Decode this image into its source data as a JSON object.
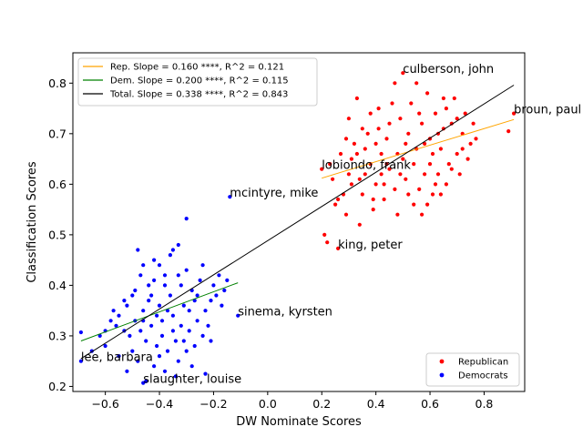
{
  "chart_data": {
    "type": "scatter",
    "xlabel": "DW Nominate Scores",
    "ylabel": "Classification Scores",
    "xlim": [
      -0.72,
      0.95
    ],
    "ylim": [
      0.19,
      0.86
    ],
    "xticks": [
      -0.6,
      -0.4,
      -0.2,
      0.0,
      0.2,
      0.4,
      0.6,
      0.8
    ],
    "xtick_labels": [
      "−0.6",
      "−0.4",
      "−0.2",
      "0.0",
      "0.2",
      "0.4",
      "0.6",
      "0.8"
    ],
    "yticks": [
      0.2,
      0.3,
      0.4,
      0.5,
      0.6,
      0.7,
      0.8
    ],
    "ytick_labels": [
      "0.2",
      "0.3",
      "0.4",
      "0.5",
      "0.6",
      "0.7",
      "0.8"
    ],
    "grid": false,
    "fit_legend": {
      "placement": "top-left",
      "entries": [
        {
          "label": "Rep. Slope = 0.160 ****, R^2 = 0.121",
          "color": "#ffa500"
        },
        {
          "label": "Dem. Slope = 0.200 ****, R^2 = 0.115",
          "color": "#008000"
        },
        {
          "label": "Total. Slope = 0.338 ****, R^2 = 0.843",
          "color": "#000000"
        }
      ]
    },
    "series_legend": {
      "placement": "bottom-right",
      "entries": [
        {
          "label": "Republican",
          "color": "#ff0000"
        },
        {
          "label": "Democrats",
          "color": "#0000ff"
        }
      ]
    },
    "fit_lines": [
      {
        "name": "Rep. Slope = 0.160 ****, R^2 = 0.121",
        "color": "#ffa500",
        "x": [
          0.2,
          0.91
        ],
        "y": [
          0.612,
          0.728
        ]
      },
      {
        "name": "Dem. Slope = 0.200 ****, R^2 = 0.115",
        "color": "#008000",
        "x": [
          -0.69,
          -0.11
        ],
        "y": [
          0.29,
          0.405
        ]
      },
      {
        "name": "Total. Slope = 0.338 ****, R^2 = 0.843",
        "color": "#000000",
        "x": [
          -0.69,
          0.91
        ],
        "y": [
          0.255,
          0.796
        ]
      }
    ],
    "annotations": [
      {
        "text": "culberson, john",
        "x": 0.5,
        "y": 0.82
      },
      {
        "text": "broun, paul",
        "x": 0.91,
        "y": 0.74
      },
      {
        "text": "lobiondo, frank",
        "x": 0.2,
        "y": 0.63
      },
      {
        "text": "mcintyre, mike",
        "x": -0.14,
        "y": 0.575
      },
      {
        "text": "king, peter",
        "x": 0.26,
        "y": 0.473
      },
      {
        "text": "sinema, kyrsten",
        "x": -0.11,
        "y": 0.34
      },
      {
        "text": "lee, barbara",
        "x": -0.69,
        "y": 0.25
      },
      {
        "text": "slaughter, louise",
        "x": -0.46,
        "y": 0.207
      }
    ],
    "series": [
      {
        "name": "Republican",
        "color": "#ff0000",
        "points": [
          [
            0.5,
            0.82
          ],
          [
            0.91,
            0.74
          ],
          [
            0.2,
            0.63
          ],
          [
            0.26,
            0.473
          ],
          [
            0.89,
            0.705
          ],
          [
            0.21,
            0.5
          ],
          [
            0.22,
            0.485
          ],
          [
            0.65,
            0.77
          ],
          [
            0.55,
            0.8
          ],
          [
            0.62,
            0.74
          ],
          [
            0.45,
            0.72
          ],
          [
            0.4,
            0.68
          ],
          [
            0.35,
            0.71
          ],
          [
            0.3,
            0.73
          ],
          [
            0.33,
            0.66
          ],
          [
            0.38,
            0.64
          ],
          [
            0.42,
            0.62
          ],
          [
            0.48,
            0.66
          ],
          [
            0.52,
            0.7
          ],
          [
            0.58,
            0.68
          ],
          [
            0.6,
            0.64
          ],
          [
            0.63,
            0.62
          ],
          [
            0.66,
            0.6
          ],
          [
            0.7,
            0.66
          ],
          [
            0.72,
            0.7
          ],
          [
            0.75,
            0.68
          ],
          [
            0.68,
            0.72
          ],
          [
            0.56,
            0.74
          ],
          [
            0.46,
            0.76
          ],
          [
            0.44,
            0.69
          ],
          [
            0.36,
            0.62
          ],
          [
            0.31,
            0.6
          ],
          [
            0.28,
            0.58
          ],
          [
            0.25,
            0.56
          ],
          [
            0.29,
            0.54
          ],
          [
            0.34,
            0.52
          ],
          [
            0.39,
            0.55
          ],
          [
            0.43,
            0.57
          ],
          [
            0.47,
            0.59
          ],
          [
            0.51,
            0.61
          ],
          [
            0.54,
            0.56
          ],
          [
            0.57,
            0.54
          ],
          [
            0.61,
            0.58
          ],
          [
            0.64,
            0.67
          ],
          [
            0.67,
            0.64
          ],
          [
            0.71,
            0.62
          ],
          [
            0.73,
            0.74
          ],
          [
            0.76,
            0.72
          ],
          [
            0.69,
            0.77
          ],
          [
            0.59,
            0.78
          ],
          [
            0.53,
            0.76
          ],
          [
            0.49,
            0.73
          ],
          [
            0.41,
            0.75
          ],
          [
            0.37,
            0.7
          ],
          [
            0.32,
            0.68
          ],
          [
            0.27,
            0.66
          ],
          [
            0.23,
            0.64
          ],
          [
            0.24,
            0.61
          ],
          [
            0.26,
            0.57
          ],
          [
            0.3,
            0.62
          ],
          [
            0.35,
            0.58
          ],
          [
            0.4,
            0.6
          ],
          [
            0.45,
            0.63
          ],
          [
            0.5,
            0.65
          ],
          [
            0.55,
            0.67
          ],
          [
            0.6,
            0.69
          ],
          [
            0.65,
            0.71
          ],
          [
            0.7,
            0.73
          ],
          [
            0.74,
            0.65
          ],
          [
            0.62,
            0.6
          ],
          [
            0.58,
            0.62
          ],
          [
            0.52,
            0.58
          ],
          [
            0.48,
            0.54
          ],
          [
            0.42,
            0.66
          ],
          [
            0.38,
            0.74
          ],
          [
            0.33,
            0.77
          ],
          [
            0.47,
            0.8
          ],
          [
            0.57,
            0.72
          ],
          [
            0.63,
            0.7
          ],
          [
            0.66,
            0.75
          ],
          [
            0.72,
            0.67
          ],
          [
            0.77,
            0.69
          ],
          [
            0.54,
            0.64
          ],
          [
            0.44,
            0.64
          ],
          [
            0.36,
            0.67
          ],
          [
            0.29,
            0.69
          ],
          [
            0.31,
            0.65
          ],
          [
            0.41,
            0.71
          ],
          [
            0.51,
            0.68
          ],
          [
            0.61,
            0.66
          ],
          [
            0.68,
            0.63
          ],
          [
            0.64,
            0.58
          ],
          [
            0.59,
            0.56
          ],
          [
            0.56,
            0.59
          ],
          [
            0.49,
            0.62
          ],
          [
            0.43,
            0.6
          ],
          [
            0.39,
            0.57
          ],
          [
            0.34,
            0.61
          ]
        ]
      },
      {
        "name": "Democrats",
        "color": "#0000ff",
        "points": [
          [
            -0.14,
            0.575
          ],
          [
            -0.11,
            0.34
          ],
          [
            -0.69,
            0.25
          ],
          [
            -0.46,
            0.207
          ],
          [
            -0.69,
            0.307
          ],
          [
            -0.45,
            0.21
          ],
          [
            -0.3,
            0.532
          ],
          [
            -0.35,
            0.47
          ],
          [
            -0.48,
            0.47
          ],
          [
            -0.4,
            0.44
          ],
          [
            -0.42,
            0.41
          ],
          [
            -0.38,
            0.4
          ],
          [
            -0.33,
            0.42
          ],
          [
            -0.28,
            0.39
          ],
          [
            -0.25,
            0.41
          ],
          [
            -0.2,
            0.4
          ],
          [
            -0.15,
            0.41
          ],
          [
            -0.5,
            0.38
          ],
          [
            -0.52,
            0.36
          ],
          [
            -0.46,
            0.35
          ],
          [
            -0.44,
            0.37
          ],
          [
            -0.4,
            0.36
          ],
          [
            -0.36,
            0.38
          ],
          [
            -0.31,
            0.36
          ],
          [
            -0.27,
            0.37
          ],
          [
            -0.23,
            0.35
          ],
          [
            -0.19,
            0.38
          ],
          [
            -0.55,
            0.34
          ],
          [
            -0.58,
            0.33
          ],
          [
            -0.6,
            0.31
          ],
          [
            -0.62,
            0.3
          ],
          [
            -0.56,
            0.32
          ],
          [
            -0.53,
            0.31
          ],
          [
            -0.49,
            0.33
          ],
          [
            -0.47,
            0.31
          ],
          [
            -0.43,
            0.32
          ],
          [
            -0.39,
            0.33
          ],
          [
            -0.35,
            0.34
          ],
          [
            -0.32,
            0.32
          ],
          [
            -0.29,
            0.31
          ],
          [
            -0.26,
            0.33
          ],
          [
            -0.24,
            0.3
          ],
          [
            -0.21,
            0.29
          ],
          [
            -0.45,
            0.29
          ],
          [
            -0.41,
            0.28
          ],
          [
            -0.37,
            0.27
          ],
          [
            -0.34,
            0.29
          ],
          [
            -0.3,
            0.27
          ],
          [
            -0.5,
            0.27
          ],
          [
            -0.55,
            0.26
          ],
          [
            -0.48,
            0.25
          ],
          [
            -0.42,
            0.24
          ],
          [
            -0.38,
            0.23
          ],
          [
            -0.33,
            0.25
          ],
          [
            -0.28,
            0.24
          ],
          [
            -0.23,
            0.225
          ],
          [
            -0.6,
            0.28
          ],
          [
            -0.65,
            0.27
          ],
          [
            -0.52,
            0.23
          ],
          [
            -0.46,
            0.44
          ],
          [
            -0.42,
            0.45
          ],
          [
            -0.36,
            0.46
          ],
          [
            -0.33,
            0.48
          ],
          [
            -0.3,
            0.43
          ],
          [
            -0.24,
            0.44
          ],
          [
            -0.18,
            0.42
          ],
          [
            -0.44,
            0.4
          ],
          [
            -0.49,
            0.39
          ],
          [
            -0.53,
            0.37
          ],
          [
            -0.57,
            0.35
          ],
          [
            -0.39,
            0.3
          ],
          [
            -0.35,
            0.31
          ],
          [
            -0.31,
            0.29
          ],
          [
            -0.27,
            0.28
          ],
          [
            -0.22,
            0.32
          ],
          [
            -0.17,
            0.36
          ],
          [
            -0.41,
            0.34
          ],
          [
            -0.37,
            0.35
          ],
          [
            -0.46,
            0.33
          ],
          [
            -0.51,
            0.3
          ],
          [
            -0.4,
            0.26
          ],
          [
            -0.34,
            0.22
          ],
          [
            -0.29,
            0.35
          ],
          [
            -0.43,
            0.38
          ],
          [
            -0.38,
            0.42
          ],
          [
            -0.47,
            0.42
          ],
          [
            -0.32,
            0.4
          ],
          [
            -0.26,
            0.38
          ],
          [
            -0.21,
            0.37
          ],
          [
            -0.16,
            0.39
          ]
        ]
      }
    ]
  }
}
